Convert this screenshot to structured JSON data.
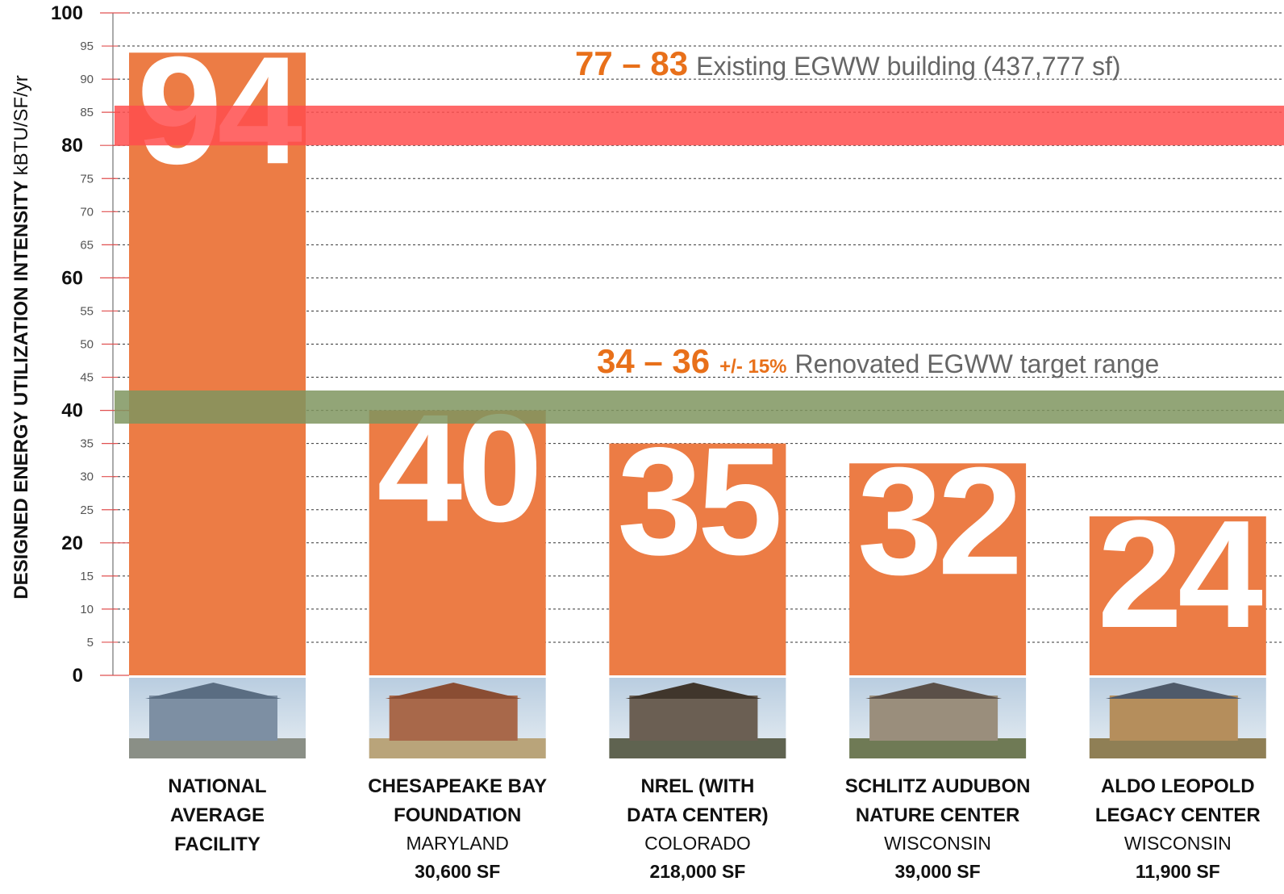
{
  "chart_data": {
    "type": "bar",
    "ylabel": "DESIGNED ENERGY UTILIZATION INTENSITY",
    "ylabel_unit": "kBTU/SF/yr",
    "categories": [
      [
        "NATIONAL",
        "AVERAGE",
        "FACILITY"
      ],
      [
        "CHESAPEAKE BAY",
        "FOUNDATION"
      ],
      [
        "NREL (WITH",
        "DATA CENTER)"
      ],
      [
        "SCHLITZ AUDUBON",
        "NATURE CENTER"
      ],
      [
        "ALDO LEOPOLD",
        "LEGACY CENTER"
      ]
    ],
    "locations": [
      null,
      "MARYLAND",
      "COLORADO",
      "WISCONSIN",
      "WISCONSIN"
    ],
    "areas": [
      null,
      "30,600 SF",
      "218,000 SF",
      "39,000 SF",
      "11,900 SF"
    ],
    "values": [
      94,
      40,
      35,
      32,
      24
    ],
    "color": "#ec7c45",
    "ylim": [
      0,
      100
    ],
    "yticks": [
      0,
      5,
      10,
      15,
      20,
      25,
      30,
      35,
      40,
      45,
      50,
      55,
      60,
      65,
      70,
      75,
      80,
      85,
      90,
      95,
      100
    ],
    "major_yticks": [
      0,
      20,
      40,
      60,
      80,
      100
    ],
    "grid": true,
    "bands": [
      {
        "from": 80,
        "to": 86,
        "color": "#ff4d4d"
      },
      {
        "from": 38,
        "to": 43,
        "color": "#7f955f"
      }
    ],
    "annotations": [
      {
        "range": "77 – 83",
        "text": "Existing EGWW building (437,777 sf)"
      },
      {
        "range": "34 – 36",
        "note": "+/- 15%",
        "text": "Renovated EGWW target range"
      }
    ]
  }
}
